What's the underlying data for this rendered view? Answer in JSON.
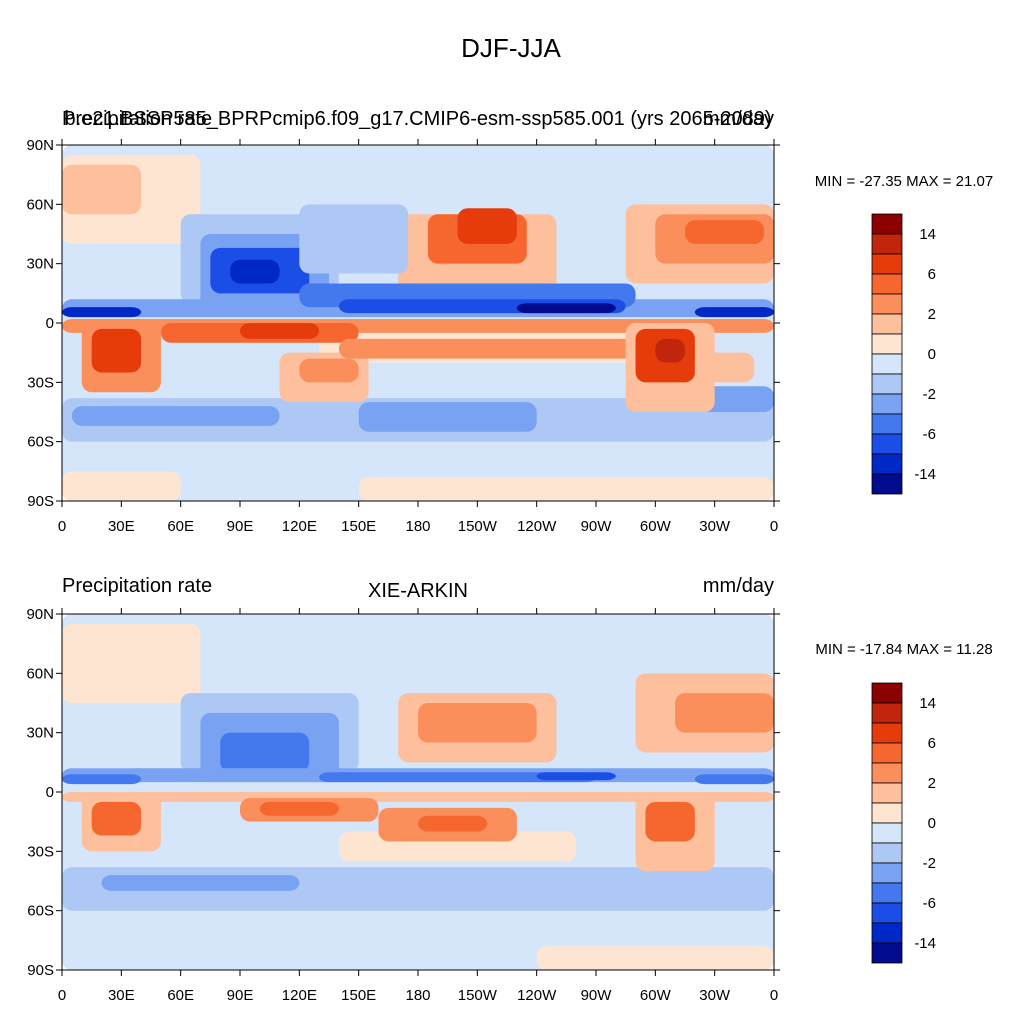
{
  "figure": {
    "title": "DJF-JJA"
  },
  "chart_data": [
    {
      "type": "heatmap",
      "title_left": "Precipitation rate",
      "title_center": "b.e21.BSSP585_BPRPcmip6.f09_g17.CMIP6-esm-ssp585.001 (yrs 2065-2089)",
      "title_right": "mm/day",
      "stats": "MIN = -27.35 MAX =  21.07",
      "x_ticks": [
        "0",
        "30E",
        "60E",
        "90E",
        "120E",
        "150E",
        "180",
        "150W",
        "120W",
        "90W",
        "60W",
        "30W",
        "0"
      ],
      "y_ticks": [
        "90N",
        "60N",
        "30N",
        "0",
        "30S",
        "60S",
        "90S"
      ],
      "xlim": [
        0,
        360
      ],
      "ylim": [
        -90,
        90
      ],
      "colorbar": {
        "colors": [
          "#8b0000",
          "#c1250b",
          "#e63c0c",
          "#f5672e",
          "#fb8f5c",
          "#fdbf9c",
          "#fde5d2",
          "#d5e6fb",
          "#adc8f5",
          "#7aa2f3",
          "#4478ee",
          "#1b4ee6",
          "#0028c6",
          "#000b8e"
        ],
        "labels": [
          "14",
          "6",
          "2",
          "0",
          "-2",
          "-6",
          "-14"
        ]
      },
      "regions": [
        {
          "v": -1,
          "lon": [
            0,
            360
          ],
          "lat": [
            -90,
            90
          ]
        },
        {
          "v": 1,
          "lon": [
            0,
            70
          ],
          "lat": [
            40,
            85
          ]
        },
        {
          "v": 2,
          "lon": [
            0,
            40
          ],
          "lat": [
            55,
            80
          ]
        },
        {
          "v": 1,
          "lon": [
            0,
            60
          ],
          "lat": [
            -90,
            -75
          ]
        },
        {
          "v": 1,
          "lon": [
            150,
            360
          ],
          "lat": [
            -90,
            -78
          ]
        },
        {
          "v": 1,
          "lon": [
            130,
            330
          ],
          "lat": [
            -20,
            -5
          ]
        },
        {
          "v": -2,
          "lon": [
            0,
            360
          ],
          "lat": [
            -60,
            -38
          ]
        },
        {
          "v": -3,
          "lon": [
            5,
            110
          ],
          "lat": [
            -52,
            -42
          ]
        },
        {
          "v": -3,
          "lon": [
            150,
            240
          ],
          "lat": [
            -55,
            -40
          ]
        },
        {
          "v": -3,
          "lon": [
            290,
            360
          ],
          "lat": [
            -45,
            -32
          ]
        },
        {
          "v": 2,
          "lon": [
            170,
            250
          ],
          "lat": [
            15,
            55
          ]
        },
        {
          "v": 4,
          "lon": [
            185,
            235
          ],
          "lat": [
            30,
            55
          ]
        },
        {
          "v": 5,
          "lon": [
            200,
            230
          ],
          "lat": [
            40,
            58
          ]
        },
        {
          "v": 2,
          "lon": [
            285,
            360
          ],
          "lat": [
            20,
            60
          ]
        },
        {
          "v": 3,
          "lon": [
            300,
            360
          ],
          "lat": [
            30,
            55
          ]
        },
        {
          "v": 4,
          "lon": [
            315,
            355
          ],
          "lat": [
            40,
            52
          ]
        },
        {
          "v": -2,
          "lon": [
            60,
            140
          ],
          "lat": [
            10,
            55
          ]
        },
        {
          "v": -3,
          "lon": [
            70,
            135
          ],
          "lat": [
            5,
            45
          ]
        },
        {
          "v": -5,
          "lon": [
            75,
            125
          ],
          "lat": [
            15,
            38
          ]
        },
        {
          "v": -6,
          "lon": [
            85,
            110
          ],
          "lat": [
            20,
            32
          ]
        },
        {
          "v": -2,
          "lon": [
            120,
            175
          ],
          "lat": [
            25,
            60
          ]
        },
        {
          "v": -3,
          "lon": [
            0,
            360
          ],
          "lat": [
            3,
            12
          ]
        },
        {
          "v": -4,
          "lon": [
            120,
            290
          ],
          "lat": [
            8,
            20
          ]
        },
        {
          "v": -5,
          "lon": [
            140,
            285
          ],
          "lat": [
            5,
            12
          ]
        },
        {
          "v": -7,
          "lon": [
            230,
            280
          ],
          "lat": [
            5,
            10
          ]
        },
        {
          "v": -6,
          "lon": [
            320,
            360
          ],
          "lat": [
            3,
            8
          ]
        },
        {
          "v": -6,
          "lon": [
            0,
            40
          ],
          "lat": [
            3,
            8
          ]
        },
        {
          "v": 3,
          "lon": [
            0,
            360
          ],
          "lat": [
            -5,
            2
          ]
        },
        {
          "v": 3,
          "lon": [
            10,
            50
          ],
          "lat": [
            -35,
            0
          ]
        },
        {
          "v": 5,
          "lon": [
            15,
            40
          ],
          "lat": [
            -25,
            -3
          ]
        },
        {
          "v": 4,
          "lon": [
            50,
            150
          ],
          "lat": [
            -10,
            0
          ]
        },
        {
          "v": 5,
          "lon": [
            90,
            130
          ],
          "lat": [
            -8,
            0
          ]
        },
        {
          "v": 2,
          "lon": [
            110,
            155
          ],
          "lat": [
            -40,
            -15
          ]
        },
        {
          "v": 3,
          "lon": [
            120,
            150
          ],
          "lat": [
            -30,
            -18
          ]
        },
        {
          "v": 3,
          "lon": [
            140,
            290
          ],
          "lat": [
            -18,
            -8
          ]
        },
        {
          "v": 2,
          "lon": [
            285,
            330
          ],
          "lat": [
            -45,
            0
          ]
        },
        {
          "v": 5,
          "lon": [
            290,
            320
          ],
          "lat": [
            -30,
            -3
          ]
        },
        {
          "v": 6,
          "lon": [
            300,
            315
          ],
          "lat": [
            -20,
            -8
          ]
        },
        {
          "v": 2,
          "lon": [
            320,
            350
          ],
          "lat": [
            -30,
            -15
          ]
        }
      ]
    },
    {
      "type": "heatmap",
      "title_left": "Precipitation rate",
      "title_center": "XIE-ARKIN",
      "title_right": "mm/day",
      "stats": "MIN = -17.84 MAX =  11.28",
      "x_ticks": [
        "0",
        "30E",
        "60E",
        "90E",
        "120E",
        "150E",
        "180",
        "150W",
        "120W",
        "90W",
        "60W",
        "30W",
        "0"
      ],
      "y_ticks": [
        "90N",
        "60N",
        "30N",
        "0",
        "30S",
        "60S",
        "90S"
      ],
      "xlim": [
        0,
        360
      ],
      "ylim": [
        -90,
        90
      ],
      "colorbar": {
        "colors": [
          "#8b0000",
          "#c1250b",
          "#e63c0c",
          "#f5672e",
          "#fb8f5c",
          "#fdbf9c",
          "#fde5d2",
          "#d5e6fb",
          "#adc8f5",
          "#7aa2f3",
          "#4478ee",
          "#1b4ee6",
          "#0028c6",
          "#000b8e"
        ],
        "labels": [
          "14",
          "6",
          "2",
          "0",
          "-2",
          "-6",
          "-14"
        ]
      },
      "regions": [
        {
          "v": -1,
          "lon": [
            0,
            360
          ],
          "lat": [
            -90,
            90
          ]
        },
        {
          "v": 1,
          "lon": [
            0,
            70
          ],
          "lat": [
            45,
            85
          ]
        },
        {
          "v": 1,
          "lon": [
            240,
            360
          ],
          "lat": [
            -90,
            -78
          ]
        },
        {
          "v": 1,
          "lon": [
            140,
            260
          ],
          "lat": [
            -35,
            -20
          ]
        },
        {
          "v": -2,
          "lon": [
            0,
            360
          ],
          "lat": [
            -60,
            -38
          ]
        },
        {
          "v": -3,
          "lon": [
            20,
            120
          ],
          "lat": [
            -50,
            -42
          ]
        },
        {
          "v": 2,
          "lon": [
            170,
            250
          ],
          "lat": [
            15,
            50
          ]
        },
        {
          "v": 3,
          "lon": [
            180,
            240
          ],
          "lat": [
            25,
            45
          ]
        },
        {
          "v": 2,
          "lon": [
            290,
            360
          ],
          "lat": [
            20,
            60
          ]
        },
        {
          "v": 3,
          "lon": [
            310,
            360
          ],
          "lat": [
            30,
            50
          ]
        },
        {
          "v": -2,
          "lon": [
            60,
            150
          ],
          "lat": [
            10,
            50
          ]
        },
        {
          "v": -3,
          "lon": [
            70,
            140
          ],
          "lat": [
            5,
            40
          ]
        },
        {
          "v": -4,
          "lon": [
            80,
            125
          ],
          "lat": [
            10,
            30
          ]
        },
        {
          "v": -3,
          "lon": [
            0,
            360
          ],
          "lat": [
            5,
            12
          ]
        },
        {
          "v": -4,
          "lon": [
            130,
            270
          ],
          "lat": [
            5,
            10
          ]
        },
        {
          "v": -5,
          "lon": [
            240,
            280
          ],
          "lat": [
            6,
            10
          ]
        },
        {
          "v": -4,
          "lon": [
            320,
            360
          ],
          "lat": [
            4,
            9
          ]
        },
        {
          "v": -4,
          "lon": [
            0,
            40
          ],
          "lat": [
            4,
            9
          ]
        },
        {
          "v": 2,
          "lon": [
            0,
            360
          ],
          "lat": [
            -5,
            0
          ]
        },
        {
          "v": 2,
          "lon": [
            10,
            50
          ],
          "lat": [
            -30,
            0
          ]
        },
        {
          "v": 4,
          "lon": [
            15,
            40
          ],
          "lat": [
            -22,
            -5
          ]
        },
        {
          "v": 3,
          "lon": [
            90,
            160
          ],
          "lat": [
            -15,
            -3
          ]
        },
        {
          "v": 4,
          "lon": [
            100,
            140
          ],
          "lat": [
            -12,
            -5
          ]
        },
        {
          "v": 3,
          "lon": [
            160,
            230
          ],
          "lat": [
            -25,
            -8
          ]
        },
        {
          "v": 4,
          "lon": [
            180,
            215
          ],
          "lat": [
            -20,
            -12
          ]
        },
        {
          "v": 2,
          "lon": [
            290,
            330
          ],
          "lat": [
            -40,
            0
          ]
        },
        {
          "v": 4,
          "lon": [
            295,
            320
          ],
          "lat": [
            -25,
            -5
          ]
        }
      ]
    }
  ]
}
